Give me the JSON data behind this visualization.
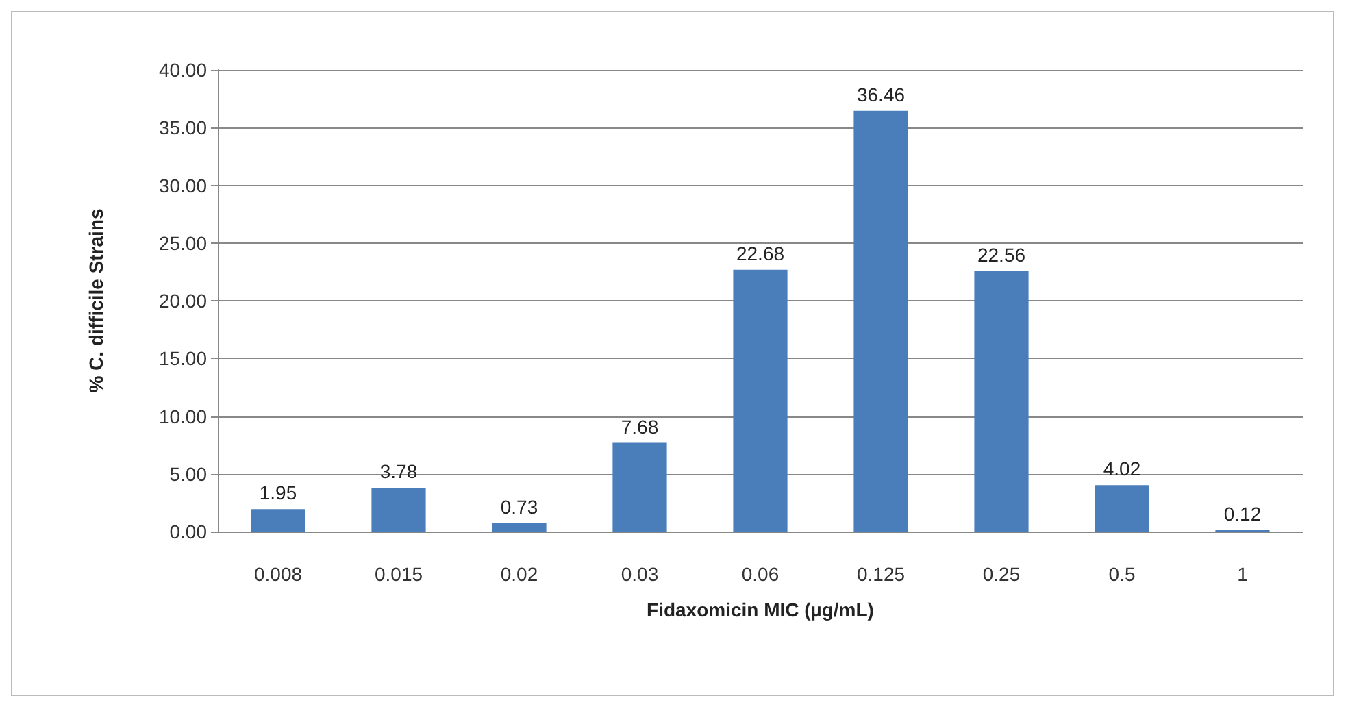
{
  "chart_data": {
    "type": "bar",
    "xlabel": "Fidaxomicin MIC (µg/mL)",
    "ylabel": "% C. difficile Strains",
    "categories": [
      "0.008",
      "0.015",
      "0.02",
      "0.03",
      "0.06",
      "0.125",
      "0.25",
      "0.5",
      "1"
    ],
    "values": [
      1.95,
      3.78,
      0.73,
      7.68,
      22.68,
      36.46,
      22.56,
      4.02,
      0.12
    ],
    "color": "#4a7ebb",
    "data_labels": true,
    "ylim": [
      0,
      40
    ],
    "yticks": [
      {
        "value": 0,
        "label": "0.00"
      },
      {
        "value": 5,
        "label": "5.00"
      },
      {
        "value": 10,
        "label": "10.00"
      },
      {
        "value": 15,
        "label": "15.00"
      },
      {
        "value": 20,
        "label": "20.00"
      },
      {
        "value": 25,
        "label": "25.00"
      },
      {
        "value": 30,
        "label": "30.00"
      },
      {
        "value": 35,
        "label": "35.00"
      },
      {
        "value": 40,
        "label": "40.00"
      }
    ],
    "grid": "y"
  }
}
